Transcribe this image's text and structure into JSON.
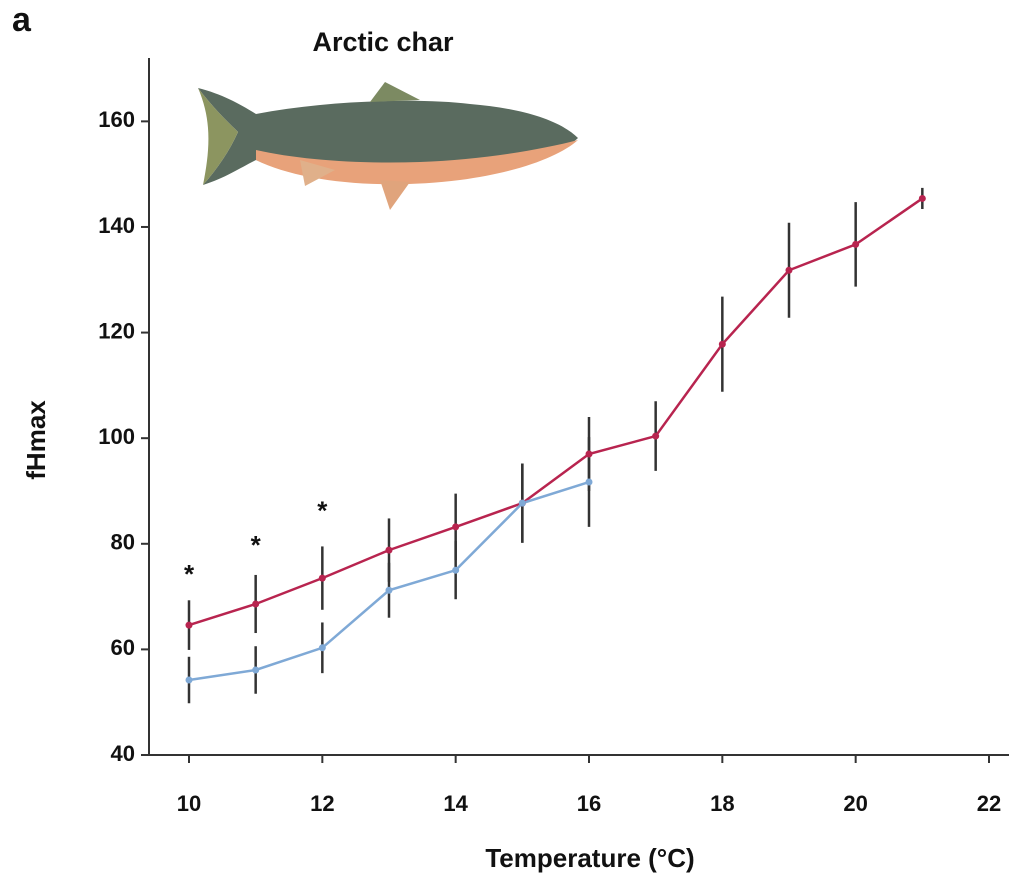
{
  "chart_data": {
    "type": "line",
    "panel_label": "a",
    "title": "Arctic char",
    "x_label": "Temperature (°C)",
    "y_label": "fHmax",
    "xlim": [
      9.4,
      22.3
    ],
    "ylim": [
      40,
      172
    ],
    "xticks": [
      10,
      12,
      14,
      16,
      18,
      20,
      22
    ],
    "yticks": [
      40,
      60,
      80,
      100,
      120,
      140,
      160
    ],
    "series": [
      {
        "color": "#b8244f",
        "x": [
          10,
          11,
          12,
          13,
          14,
          15,
          16,
          17,
          18,
          19,
          20,
          21
        ],
        "values": [
          64.6,
          68.6,
          73.5,
          78.8,
          83.2,
          87.7,
          97,
          100.4,
          117.8,
          131.8,
          136.7,
          145.4
        ],
        "errors": [
          4.7,
          5.5,
          6,
          6,
          6.3,
          7.5,
          7,
          6.6,
          9,
          9,
          8,
          2
        ]
      },
      {
        "color": "#7fa9d6",
        "x": [
          10,
          11,
          12,
          13,
          14,
          15,
          16
        ],
        "values": [
          54.2,
          56.1,
          60.3,
          71.2,
          75,
          87.7,
          91.7
        ],
        "errors": [
          4.4,
          4.5,
          4.8,
          5.2,
          5.5,
          7.5,
          8.5
        ]
      }
    ],
    "error_color": "#333333",
    "annotations": [
      {
        "text": "*",
        "x": 10,
        "y": 75
      },
      {
        "text": "*",
        "x": 11,
        "y": 80.5
      },
      {
        "text": "*",
        "x": 12,
        "y": 87
      }
    ]
  }
}
